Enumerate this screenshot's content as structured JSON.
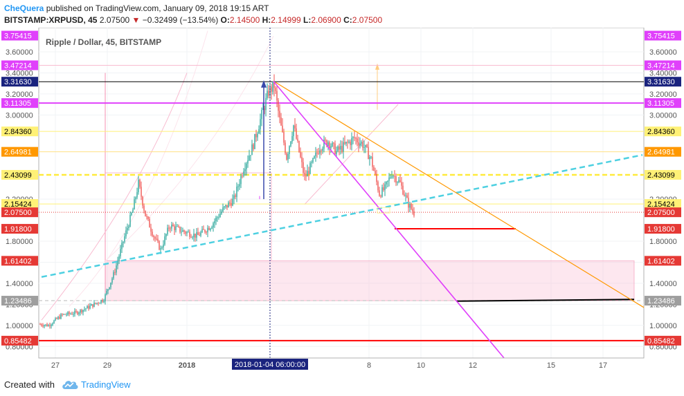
{
  "header": {
    "author": "CheQuera",
    "published_text": " published on TradingView.com, January 09, 2018 19:15 ART",
    "symbol": "BITSTAMP:XRPUSD, 45",
    "last": "2.07500",
    "change": "−0.32499 (−13.54%)",
    "o_label": "O:",
    "o_value": "2.14500",
    "h_label": "H:",
    "h_value": "2.14999",
    "l_label": "L:",
    "l_value": "2.06900",
    "c_label": "C:",
    "c_value": "2.07500",
    "down_arrow": "▼"
  },
  "chart_data": {
    "type": "candlestick",
    "title": "Ripple / Dollar, 45, BITSTAMP",
    "ylim": [
      0.69,
      3.83
    ],
    "y_ticks": [
      "1.00000",
      "1.20000",
      "1.40000",
      "1.60000",
      "1.80000",
      "2.20000",
      "3.00000",
      "3.20000",
      "3.40000",
      "3.60000",
      "0.80000"
    ],
    "x_ticks": [
      "27",
      "29",
      "2018",
      "8",
      "10",
      "12",
      "15",
      "17"
    ],
    "crosshair_label": "2018-01-04 06:00:00",
    "price_labels": [
      {
        "value": 3.75415,
        "text": "3.75415",
        "color": "#e040fb"
      },
      {
        "value": 3.47214,
        "text": "3.47214",
        "color": "#e040fb"
      },
      {
        "value": 3.3163,
        "text": "3.31630",
        "color": "#1a237e"
      },
      {
        "value": 3.11305,
        "text": "3.11305",
        "color": "#e040fb"
      },
      {
        "value": 2.8436,
        "text": "2.84360",
        "color": "#fff176"
      },
      {
        "value": 2.64981,
        "text": "2.64981",
        "color": "#ff9800"
      },
      {
        "value": 2.43099,
        "text": "2.43099",
        "color": "#fff176"
      },
      {
        "value": 2.15424,
        "text": "2.15424",
        "color": "#fff176"
      },
      {
        "value": 2.075,
        "text": "2.07500",
        "color": "#e53935"
      },
      {
        "value": 1.918,
        "text": "1.91800",
        "color": "#e53935"
      },
      {
        "value": 1.61402,
        "text": "1.61402",
        "color": "#e53935"
      },
      {
        "value": 1.23486,
        "text": "1.23486",
        "color": "#9e9e9e"
      },
      {
        "value": 0.85482,
        "text": "0.85482",
        "color": "#e53935"
      }
    ],
    "colors": {
      "up": "#26a69a",
      "down": "#ef5350",
      "magenta": "#e040fb",
      "cyan": "#26c6da",
      "orange": "#ff9800",
      "yellow": "#fff176",
      "red": "#ff0000",
      "black": "#000000"
    }
  },
  "footer": {
    "created_with": "Created with",
    "brand": "TradingView"
  }
}
